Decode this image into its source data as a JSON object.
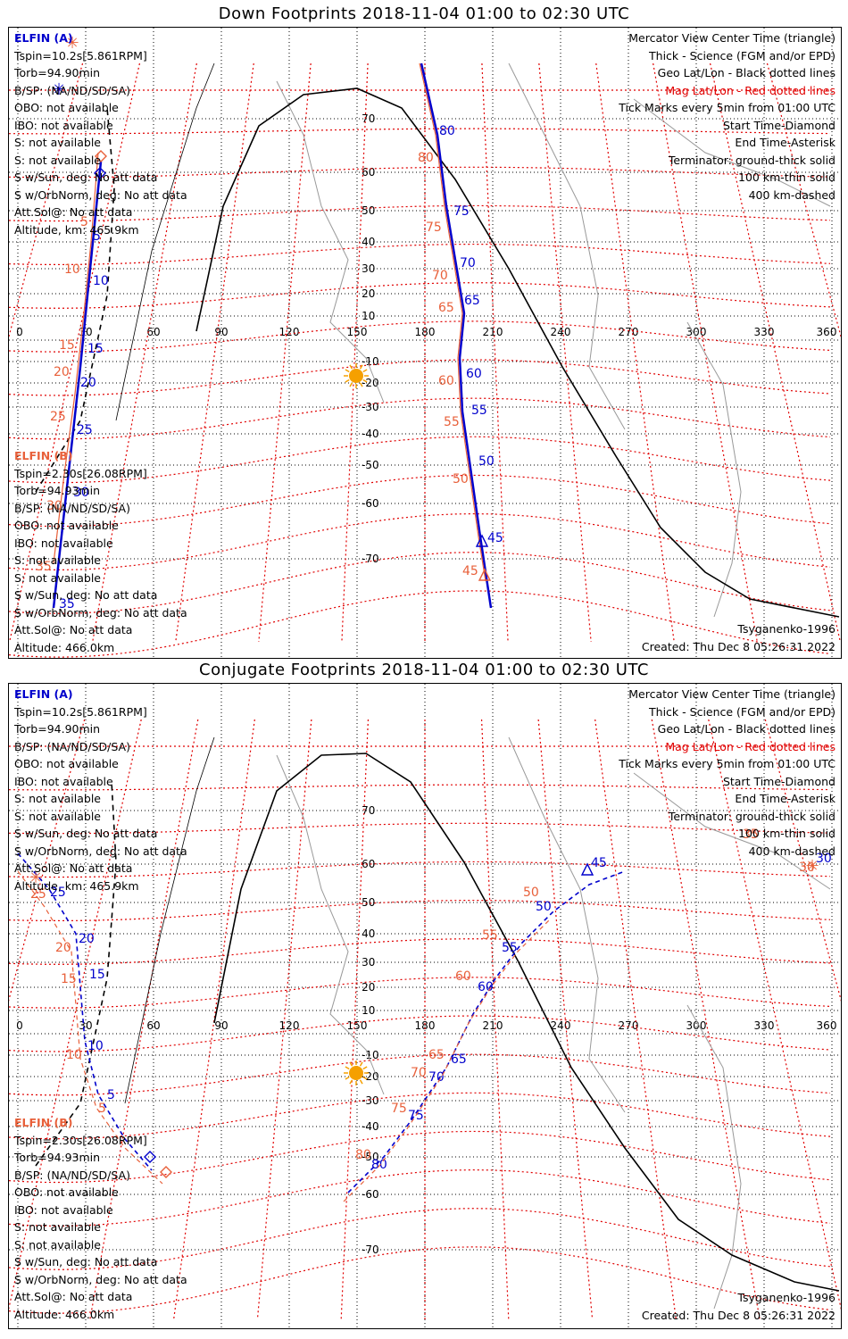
{
  "panels": [
    {
      "title": "Down Footprints 2018-11-04 01:00 to 02:30 UTC",
      "elfin_a": {
        "name": "ELFIN (A)",
        "lines": [
          "Tspin=10.2s[5.861RPM]",
          "Torb=94.90min",
          "B/SP: (NA/ND/SD/SA)",
          "OBO: not available",
          "IBO: not available",
          "S: not available",
          "S: not available",
          "S w/Sun, deg: No att data",
          "S w/OrbNorm, deg: No att data",
          "Att.Sol@: No att data",
          "Altitude, km: 465.9km"
        ]
      },
      "elfin_b": {
        "name": "ELFIN (B)",
        "lines": [
          "Tspin=2.30s[26.08RPM]",
          "Torb=94.93min",
          "B/SP: (NA/ND/SD/SA)",
          "OBO: not available",
          "IBO: not available",
          "S: not available",
          "S: not available",
          "S w/Sun, deg: No att data",
          "S w/OrbNorm, deg: No att data",
          "Att.Sol@: No att data",
          "Altitude: 466.0km"
        ]
      },
      "legend": [
        "Mercator View Center Time (triangle)",
        "Thick - Science (FGM and/or EPD)",
        "Geo Lat/Lon - Black dotted lines",
        "Mag Lat/Lon - Red dotted lines",
        "Tick Marks every 5min from 01:00 UTC",
        "Start Time-Diamond",
        "End Time-Asterisk",
        "Terminator: ground-thick solid",
        "100 km-thin solid",
        "400 km-dashed"
      ],
      "model": "Tsyganenko-1996",
      "created": "Created: Thu Dec  8 05:26:31 2022",
      "track_a_labels": [
        "5",
        "10",
        "15",
        "20",
        "25",
        "30",
        "35"
      ],
      "track_b_labels": [
        "5",
        "10",
        "15",
        "20",
        "25",
        "30",
        "35"
      ],
      "track2_a_labels": [
        "80",
        "75",
        "70",
        "65",
        "60",
        "55",
        "50",
        "45"
      ],
      "track2_b_labels": [
        "80",
        "75",
        "70",
        "65",
        "60",
        "55",
        "50",
        "45"
      ]
    },
    {
      "title": "Conjugate Footprints 2018-11-04 01:00 to 02:30 UTC",
      "elfin_a": {
        "name": "ELFIN (A)",
        "lines": [
          "Tspin=10.2s[5.861RPM]",
          "Torb=94.90min",
          "B/SP: (NA/ND/SD/SA)",
          "OBO: not available",
          "IBO: not available",
          "S: not available",
          "S: not available",
          "S w/Sun, deg: No att data",
          "S w/OrbNorm, deg: No att data",
          "Att.Sol@: No att data",
          "Altitude, km: 465.9km"
        ]
      },
      "elfin_b": {
        "name": "ELFIN (B)",
        "lines": [
          "Tspin=2.30s[26.08RPM]",
          "Torb=94.93min",
          "B/SP: (NA/ND/SD/SA)",
          "OBO: not available",
          "IBO: not available",
          "S: not available",
          "S: not available",
          "S w/Sun, deg: No att data",
          "S w/OrbNorm, deg: No att data",
          "Att.Sol@: No att data",
          "Altitude: 466.0km"
        ]
      },
      "legend": [
        "Mercator View Center Time (triangle)",
        "Thick - Science (FGM and/or EPD)",
        "Geo Lat/Lon - Black dotted lines",
        "Mag Lat/Lon - Red dotted lines",
        "Tick Marks every 5min from 01:00 UTC",
        "Start Time-Diamond",
        "End Time-Asterisk",
        "Terminator: ground-thick solid",
        "100 km-thin solid",
        "400 km-dashed"
      ],
      "model": "Tsyganenko-1996",
      "created": "Created: Thu Dec  8 05:26:31 2022",
      "track_a_labels": [
        "5",
        "10",
        "15",
        "20",
        "25"
      ],
      "track_b_labels": [
        "5",
        "10",
        "15",
        "20",
        "25"
      ],
      "track2_a_labels": [
        "80",
        "75",
        "70",
        "65",
        "60",
        "55",
        "50",
        "45",
        "30"
      ],
      "track2_b_labels": [
        "80",
        "75",
        "70",
        "65",
        "60",
        "55",
        "50",
        "35",
        "30"
      ]
    }
  ],
  "axes": {
    "lon_ticks": [
      "0",
      "30",
      "60",
      "90",
      "120",
      "150",
      "180",
      "210",
      "240",
      "270",
      "300",
      "330",
      "360"
    ],
    "lat_ticks": [
      "70",
      "60",
      "50",
      "40",
      "30",
      "20",
      "10",
      "-10",
      "-20",
      "-30",
      "-40",
      "-50",
      "-60",
      "-70"
    ]
  },
  "colors": {
    "elfin_a": "#0000cc",
    "elfin_b": "#e8603a",
    "mag_grid": "#e00000",
    "geo_grid": "#000000",
    "sun": "#f5a000"
  },
  "icons": {
    "sun": "sun-icon",
    "start": "diamond-marker",
    "end": "asterisk-marker",
    "center": "triangle-marker"
  }
}
